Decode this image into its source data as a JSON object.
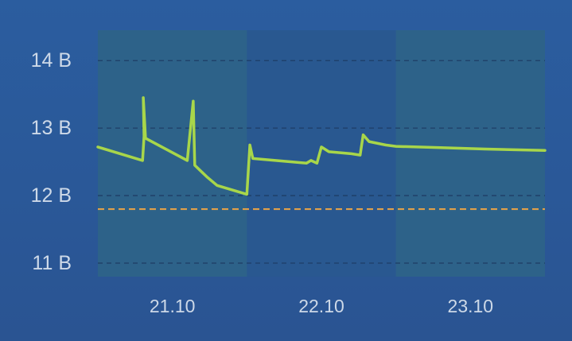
{
  "chart_data": {
    "type": "line",
    "y_unit": "В",
    "ylim": [
      10.8,
      14.45
    ],
    "xlim": [
      0,
      3
    ],
    "y_ticks": [
      {
        "value": 14,
        "label": "14 В"
      },
      {
        "value": 13,
        "label": "13 В"
      },
      {
        "value": 12,
        "label": "12 В"
      },
      {
        "value": 11,
        "label": "11 В"
      }
    ],
    "x_ticks": [
      {
        "value": 0.5,
        "label": "21.10"
      },
      {
        "value": 1.5,
        "label": "22.10"
      },
      {
        "value": 2.5,
        "label": "23.10"
      }
    ],
    "shaded_day_bands": [
      {
        "from": 0.0,
        "to": 1.0
      },
      {
        "from": 2.0,
        "to": 3.0
      }
    ],
    "threshold": {
      "value": 11.8,
      "color": "#e0a04a"
    },
    "series": [
      {
        "color": "#a8d64a",
        "points": [
          [
            0.0,
            12.72
          ],
          [
            0.3,
            12.52
          ],
          [
            0.31,
            12.88
          ],
          [
            0.305,
            13.45
          ],
          [
            0.32,
            12.85
          ],
          [
            0.6,
            12.52
          ],
          [
            0.64,
            13.4
          ],
          [
            0.65,
            12.45
          ],
          [
            0.73,
            12.28
          ],
          [
            0.8,
            12.15
          ],
          [
            1.0,
            12.02
          ],
          [
            1.02,
            12.75
          ],
          [
            1.04,
            12.55
          ],
          [
            1.3,
            12.5
          ],
          [
            1.4,
            12.48
          ],
          [
            1.43,
            12.52
          ],
          [
            1.47,
            12.48
          ],
          [
            1.5,
            12.72
          ],
          [
            1.55,
            12.65
          ],
          [
            1.7,
            12.62
          ],
          [
            1.76,
            12.6
          ],
          [
            1.78,
            12.9
          ],
          [
            1.82,
            12.8
          ],
          [
            1.93,
            12.75
          ],
          [
            2.0,
            12.73
          ],
          [
            2.3,
            12.71
          ],
          [
            2.6,
            12.69
          ],
          [
            3.0,
            12.67
          ]
        ]
      }
    ],
    "colors": {
      "background": "#2a5898",
      "grid": "#1e3d66",
      "band": "#2d6488",
      "tick_text": "#cdd9e8"
    }
  }
}
